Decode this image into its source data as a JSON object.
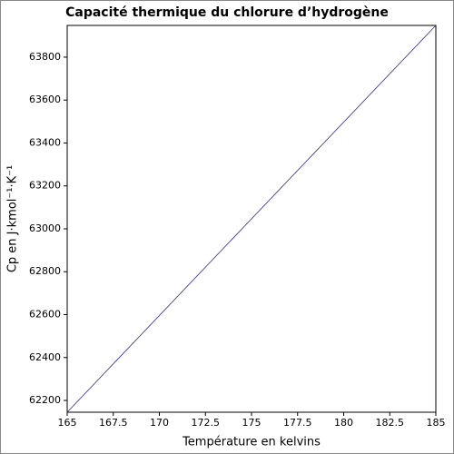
{
  "chart_data": {
    "type": "line",
    "title": "Capacité thermique du chlorure d’hydrogène",
    "x_label": "Température en kelvins",
    "y_label": "Cp en J·kmol⁻¹·K⁻¹",
    "x": [
      165,
      185
    ],
    "series": [
      {
        "color": "#2a2a9a",
        "values": [
          62145,
          63948
        ]
      }
    ],
    "xlim": [
      165,
      185
    ],
    "ylim": [
      62145,
      63948
    ],
    "xticks": [
      165,
      167.5,
      170,
      172.5,
      175,
      177.5,
      180,
      182.5,
      185
    ],
    "yticks": [
      62200,
      62400,
      62600,
      62800,
      63000,
      63200,
      63400,
      63600,
      63800
    ]
  }
}
